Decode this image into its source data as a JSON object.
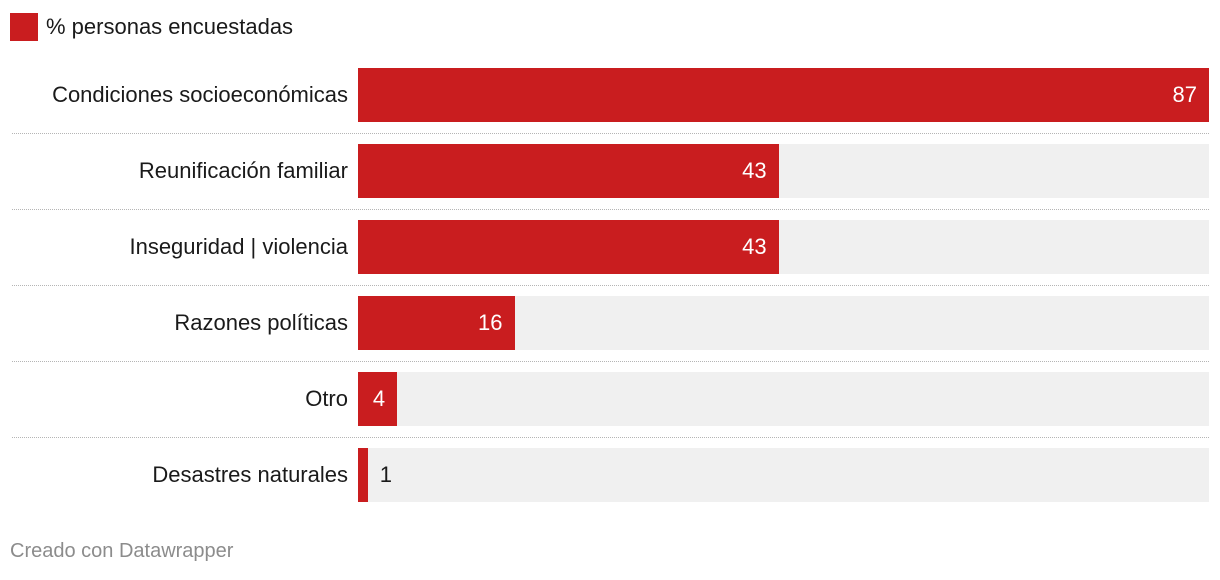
{
  "legend": {
    "label": "% personas encuestadas",
    "color": "#c91d1f"
  },
  "footer": {
    "credit": "Creado con Datawrapper"
  },
  "colors": {
    "bar": "#c91d1f",
    "track": "#f0f0f0",
    "separator": "#b5b5b5"
  },
  "chart_data": {
    "type": "bar",
    "orientation": "horizontal",
    "categories": [
      "Condiciones socioeconómicas",
      "Reunificación familiar",
      "Inseguridad | violencia",
      "Razones políticas",
      "Otro",
      "Desastres naturales"
    ],
    "values": [
      87,
      43,
      43,
      16,
      4,
      1
    ],
    "xlim": [
      0,
      87
    ],
    "grid": false,
    "legend_position": "top-left",
    "series": [
      {
        "name": "% personas encuestadas",
        "values": [
          87,
          43,
          43,
          16,
          4,
          1
        ]
      }
    ]
  }
}
